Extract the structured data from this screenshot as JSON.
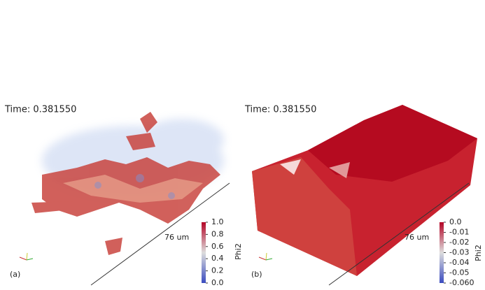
{
  "panels": [
    {
      "time": "Time: 0.381550",
      "scale_label": "76 um",
      "label": "(a)",
      "colorbar": {
        "title": "Phi2",
        "ticks": [
          "1.0",
          "0.8",
          "0.6",
          "0.4",
          "0.2",
          "0.0"
        ]
      }
    },
    {
      "time": "Time: 0.381550",
      "scale_label": "76 um",
      "label": "(b)",
      "colorbar": {
        "title": "Phi2",
        "ticks": [
          "0.0",
          "-0.01",
          "-0.02",
          "-0.03",
          "-0.04",
          "-0.05",
          "-0.060"
        ]
      }
    }
  ]
}
